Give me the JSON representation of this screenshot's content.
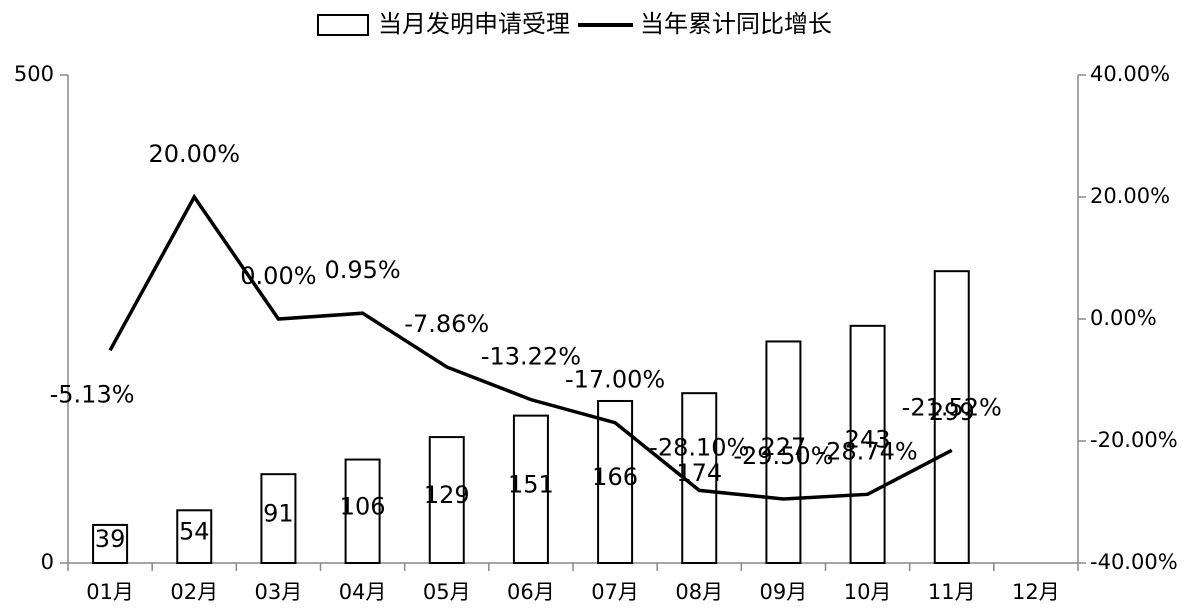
{
  "chart_data": {
    "type": "bar",
    "categories": [
      "01月",
      "02月",
      "03月",
      "04月",
      "05月",
      "06月",
      "07月",
      "08月",
      "09月",
      "10月",
      "11月",
      "12月"
    ],
    "series": [
      {
        "name": "当月发明申请受理",
        "type": "bar",
        "color": "#ffffff",
        "values": [
          39,
          54,
          91,
          106,
          129,
          151,
          166,
          174,
          227,
          243,
          299,
          null
        ]
      },
      {
        "name": "当年累计同比增长",
        "type": "line",
        "axis": "y2",
        "color": "#000000",
        "values": [
          -5.13,
          20.0,
          0.0,
          0.95,
          -7.86,
          -13.22,
          -17.0,
          -28.1,
          -29.5,
          -28.74,
          -21.52,
          null
        ],
        "value_labels": [
          "-5.13%",
          "20.00%",
          "0.00%",
          "0.95%",
          "-7.86%",
          "-13.22%",
          "-17.00%",
          "-28.10%",
          "-29.50%",
          "-28.74%",
          "-21.52%",
          null
        ]
      }
    ],
    "ylim": [
      0,
      500
    ],
    "yticks": [
      0,
      500
    ],
    "y2lim": [
      -40,
      40
    ],
    "y2ticks": [
      {
        "value": -40,
        "label": "-40.00%"
      },
      {
        "value": -20,
        "label": "-20.00%"
      },
      {
        "value": 0,
        "label": "0.00%"
      },
      {
        "value": 20,
        "label": "20.00%"
      },
      {
        "value": 40,
        "label": "40.00%"
      }
    ],
    "legend": "top"
  }
}
